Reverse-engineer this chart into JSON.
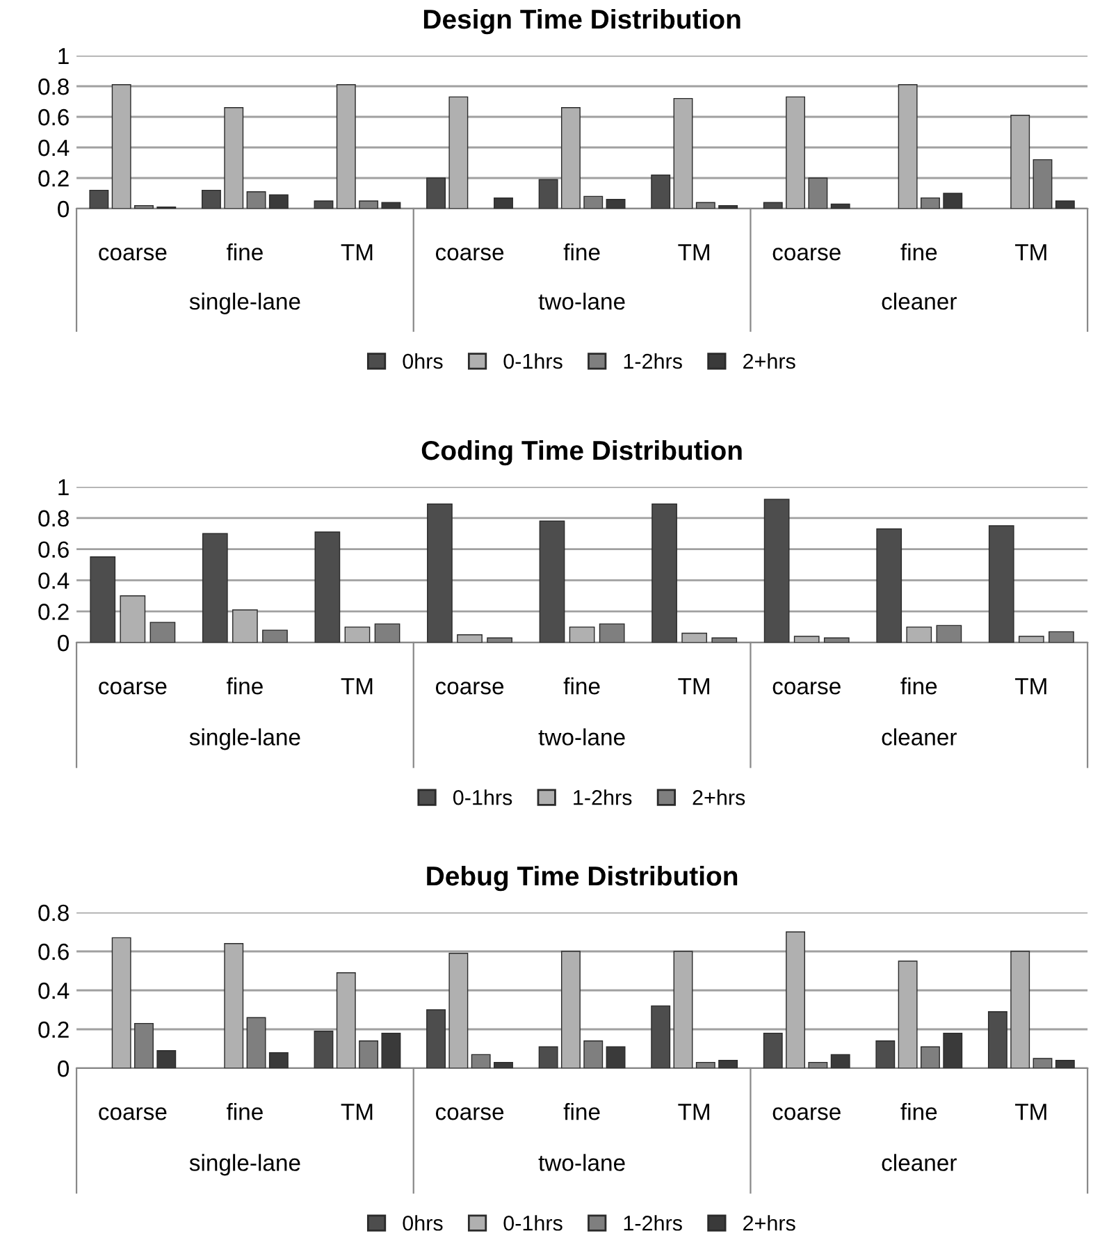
{
  "chart_data": [
    {
      "type": "bar",
      "title": "Design Time Distribution",
      "categories": [
        "coarse",
        "fine",
        "TM",
        "coarse",
        "fine",
        "TM",
        "coarse",
        "fine",
        "TM"
      ],
      "annotations": [
        "single-lane",
        "two-lane",
        "cleaner"
      ],
      "series": [
        {
          "name": "0hrs",
          "color": "#4d4d4d",
          "values": [
            0.12,
            0.12,
            0.05,
            0.2,
            0.19,
            0.22,
            0.04,
            null,
            null
          ]
        },
        {
          "name": "0-1hrs",
          "color": "#b0b0b0",
          "values": [
            0.81,
            0.66,
            0.81,
            0.73,
            0.66,
            0.72,
            0.73,
            0.81,
            0.61
          ]
        },
        {
          "name": "1-2hrs",
          "color": "#7f7f7f",
          "values": [
            0.02,
            0.11,
            0.05,
            null,
            0.08,
            0.04,
            0.2,
            0.07,
            0.32
          ]
        },
        {
          "name": "2+hrs",
          "color": "#3a3a3a",
          "values": [
            0.01,
            0.09,
            0.04,
            0.07,
            0.06,
            0.02,
            0.03,
            0.1,
            0.05
          ]
        }
      ],
      "ylim": [
        0,
        1
      ],
      "yticks": [
        0,
        0.2,
        0.4,
        0.6,
        0.8,
        1
      ],
      "grid": "y",
      "legend": "bottom"
    },
    {
      "type": "bar",
      "title": "Coding Time Distribution",
      "categories": [
        "coarse",
        "fine",
        "TM",
        "coarse",
        "fine",
        "TM",
        "coarse",
        "fine",
        "TM"
      ],
      "annotations": [
        "single-lane",
        "two-lane",
        "cleaner"
      ],
      "series": [
        {
          "name": "0-1hrs",
          "color": "#4d4d4d",
          "values": [
            0.55,
            0.7,
            0.71,
            0.89,
            0.78,
            0.89,
            0.92,
            0.73,
            0.75
          ]
        },
        {
          "name": "1-2hrs",
          "color": "#b0b0b0",
          "values": [
            0.3,
            0.21,
            0.1,
            0.05,
            0.1,
            0.06,
            0.04,
            0.1,
            0.04
          ]
        },
        {
          "name": "2+hrs",
          "color": "#7f7f7f",
          "values": [
            0.13,
            0.08,
            0.12,
            0.03,
            0.12,
            0.03,
            0.03,
            0.11,
            0.07
          ]
        }
      ],
      "ylim": [
        0,
        1
      ],
      "yticks": [
        0,
        0.2,
        0.4,
        0.6,
        0.8,
        1
      ],
      "grid": "y",
      "legend": "bottom"
    },
    {
      "type": "bar",
      "title": "Debug Time Distribution",
      "categories": [
        "coarse",
        "fine",
        "TM",
        "coarse",
        "fine",
        "TM",
        "coarse",
        "fine",
        "TM"
      ],
      "annotations": [
        "single-lane",
        "two-lane",
        "cleaner"
      ],
      "series": [
        {
          "name": "0hrs",
          "color": "#4d4d4d",
          "values": [
            null,
            null,
            0.19,
            0.3,
            0.11,
            0.32,
            0.18,
            0.14,
            0.29
          ]
        },
        {
          "name": "0-1hrs",
          "color": "#b0b0b0",
          "values": [
            0.67,
            0.64,
            0.49,
            0.59,
            0.6,
            0.6,
            0.7,
            0.55,
            0.6
          ]
        },
        {
          "name": "1-2hrs",
          "color": "#7f7f7f",
          "values": [
            0.23,
            0.26,
            0.14,
            0.07,
            0.14,
            0.03,
            0.03,
            0.11,
            0.05
          ]
        },
        {
          "name": "2+hrs",
          "color": "#3a3a3a",
          "values": [
            0.09,
            0.08,
            0.18,
            0.03,
            0.11,
            0.04,
            0.07,
            0.18,
            0.04
          ]
        }
      ],
      "ylim": [
        0,
        0.8
      ],
      "yticks": [
        0,
        0.2,
        0.4,
        0.6,
        0.8
      ],
      "grid": "y",
      "legend": "bottom"
    }
  ]
}
